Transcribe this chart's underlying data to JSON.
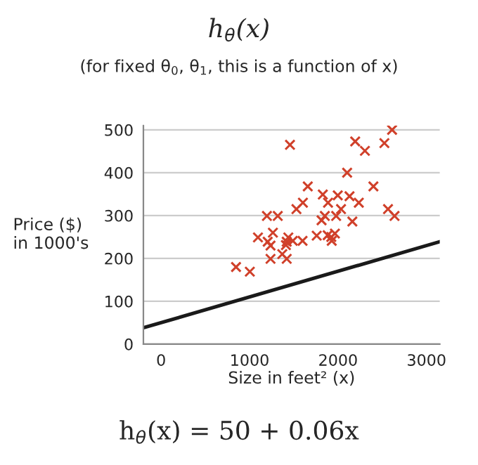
{
  "chart_data": {
    "type": "scatter",
    "title": "h$_{θ}$(x)",
    "subtitle": "(for fixed θ$_{0}$, θ$_{1}$, this is a function of x)",
    "xlabel": "Size in feet² (x)",
    "ylabel": "Price ($)\nin 1000's",
    "annotations": [
      "h$_{θ}$(x) = 50 + 0.06x"
    ],
    "series": [
      {
        "color": "#d0402a",
        "marker": "cross",
        "x": [
          1457,
          2611,
          2194,
          2524,
          2304,
          2103,
          1658,
          2400,
          1828,
          1997,
          2130,
          1887,
          1603,
          2235,
          1530,
          2034,
          2565,
          1196,
          1319,
          1851,
          1979,
          2639,
          1814,
          2162,
          1264,
          1095,
          1438,
          1759,
          1883,
          1965,
          1924,
          1205,
          1237,
          1420,
          1489,
          1599,
          1929,
          1411,
          1370,
          1237,
          1420,
          847,
          1003
        ],
        "values": [
          465,
          500,
          473,
          469,
          451,
          400,
          368,
          368,
          349,
          347,
          345,
          330,
          330,
          330,
          315,
          315,
          315,
          299,
          299,
          299,
          299,
          299,
          289,
          286,
          260,
          249,
          249,
          253,
          254,
          258,
          250,
          239,
          230,
          239,
          241,
          241,
          241,
          231,
          210,
          199,
          199,
          180,
          169
        ]
      },
      {
        "type": "line",
        "color": "#1a1a1a",
        "x": [
          -200,
          3150
        ],
        "values": [
          38,
          239
        ]
      }
    ],
    "xlim": [
      -200,
      3150
    ],
    "ylim": [
      0,
      510
    ],
    "xticks": [
      0,
      1000,
      2000,
      3000
    ],
    "yticks": [
      0,
      100,
      200,
      300,
      400,
      500
    ],
    "grid": "y"
  }
}
